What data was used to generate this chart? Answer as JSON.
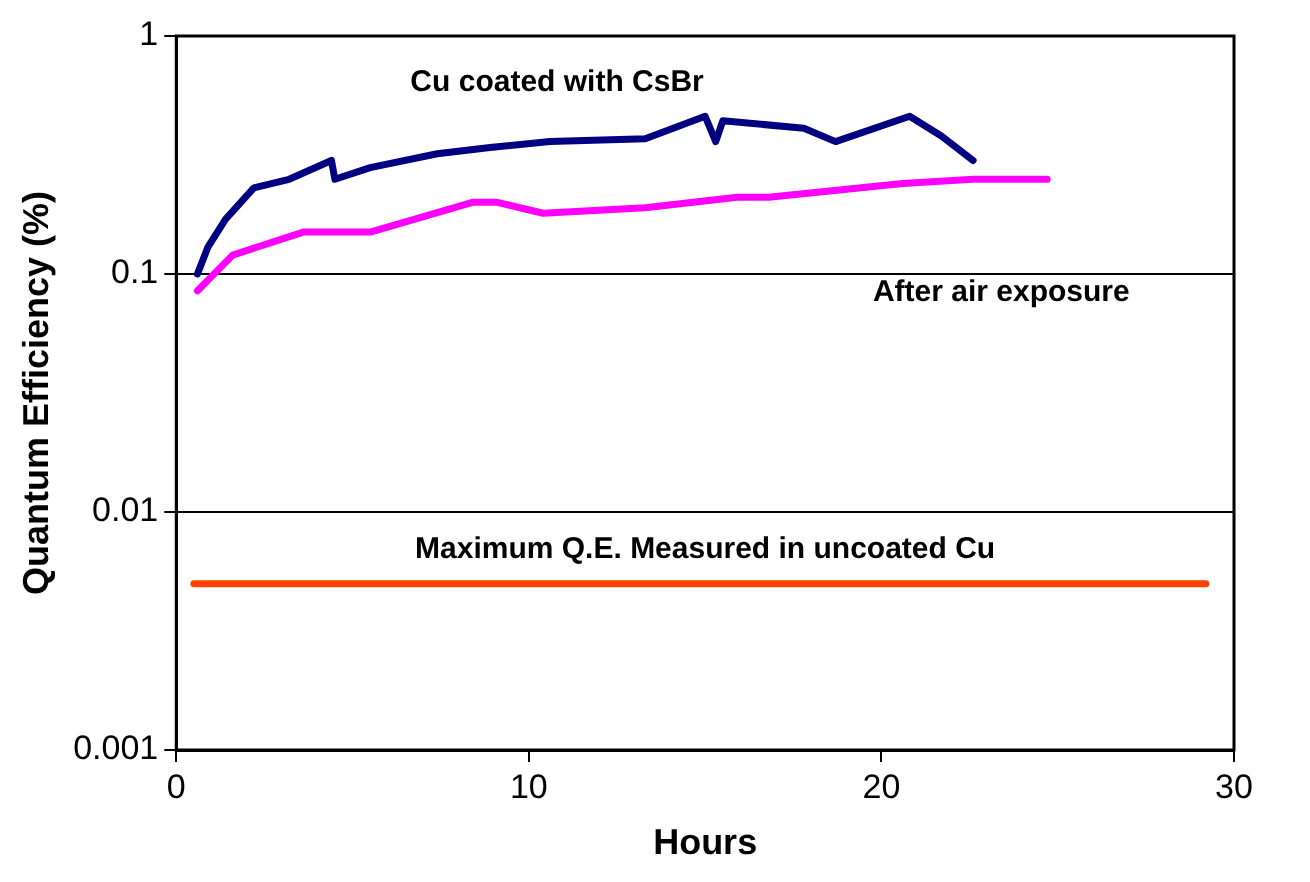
{
  "chart_data": {
    "type": "line",
    "xlabel": "Hours",
    "ylabel": "Quantum Efficiency (%)",
    "log": "y",
    "xlim": [
      0,
      30
    ],
    "xticks": [
      0,
      10,
      20,
      30
    ],
    "ylim": [
      0.001,
      1
    ],
    "yticks": [
      {
        "value": 0.001,
        "label": "0.001"
      },
      {
        "value": 0.01,
        "label": "0.01"
      },
      {
        "value": 0.1,
        "label": "0.1"
      },
      {
        "value": 1,
        "label": "1"
      }
    ],
    "grid": "y",
    "legend": false,
    "marker": "none",
    "line_style": "solid",
    "series": [
      {
        "name": "Cu coated with CsBr",
        "color": "#000080",
        "x": [
          0.6,
          0.9,
          1.4,
          2.2,
          3.2,
          4.4,
          4.5,
          5.5,
          7.4,
          8.9,
          10.6,
          13.3,
          15,
          15.3,
          15.5,
          17.8,
          18.7,
          20.8,
          21.7,
          22.6
        ],
        "values": [
          0.1,
          0.13,
          0.17,
          0.23,
          0.25,
          0.3,
          0.25,
          0.28,
          0.32,
          0.34,
          0.36,
          0.37,
          0.46,
          0.36,
          0.44,
          0.41,
          0.36,
          0.46,
          0.38,
          0.3
        ]
      },
      {
        "name": "After air exposure",
        "color": "#ff00ff",
        "x": [
          0.6,
          1.6,
          3.6,
          5.5,
          8.4,
          9.1,
          10.4,
          13.3,
          15.9,
          16.8,
          20.6,
          22.6,
          24.7
        ],
        "values": [
          0.085,
          0.12,
          0.15,
          0.15,
          0.2,
          0.2,
          0.18,
          0.19,
          0.21,
          0.21,
          0.24,
          0.25,
          0.25
        ]
      },
      {
        "name": "Maximum Q.E. Measured in uncoated Cu",
        "color": "#ff4000",
        "x": [
          0.5,
          29.2
        ],
        "values": [
          0.005,
          0.005
        ]
      }
    ]
  }
}
